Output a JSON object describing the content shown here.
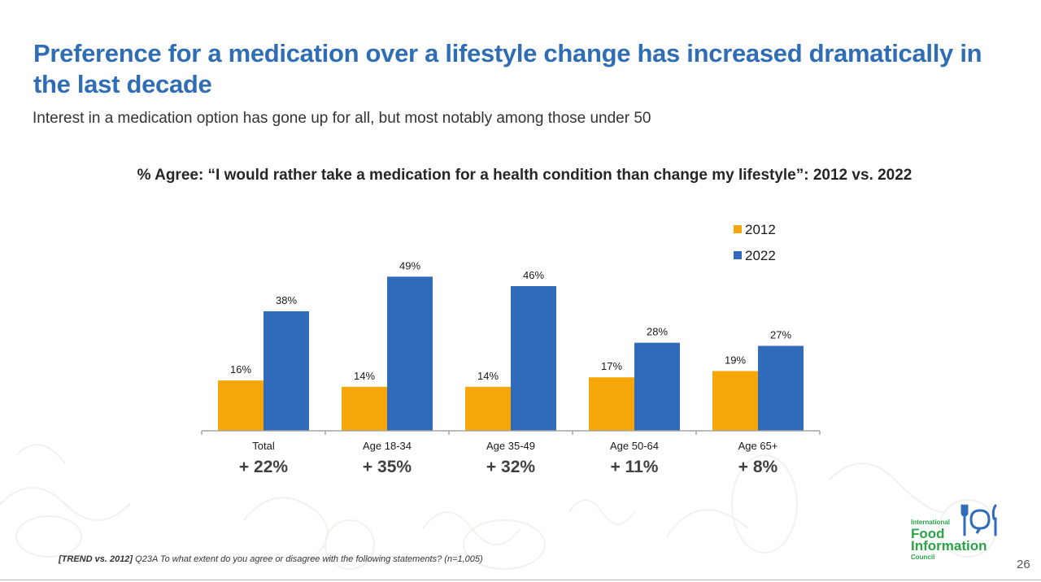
{
  "slide": {
    "title": "Preference for a medication over a lifestyle change has increased dramatically in the last decade",
    "subtitle": "Interest in a medication option has gone up for all, but most notably among those under 50",
    "footnote_prefix": "[TREND vs. 2012]",
    "footnote_text": " Q23A To what extent do you agree or disagree with the following statements? (n=1,005)",
    "page_number": "26",
    "logo": {
      "line1": "International",
      "line2": "Food",
      "line3": "Information",
      "line4": "Council"
    }
  },
  "chart_data": {
    "type": "bar",
    "title": "% Agree: “I would rather take a medication for a health condition than change my lifestyle”: 2012 vs. 2022",
    "categories": [
      "Total",
      "Age 18-34",
      "Age 35-49",
      "Age 50-64",
      "Age 65+"
    ],
    "series": [
      {
        "name": "2012",
        "color": "#f5a70a",
        "values": [
          16,
          14,
          14,
          17,
          19
        ],
        "labels": [
          "16%",
          "14%",
          "14%",
          "17%",
          "19%"
        ]
      },
      {
        "name": "2022",
        "color": "#2f6bb8",
        "values": [
          38,
          49,
          46,
          28,
          27
        ],
        "labels": [
          "38%",
          "49%",
          "46%",
          "28%",
          "27%"
        ]
      }
    ],
    "differences": [
      "+ 22%",
      "+ 35%",
      "+ 32%",
      "+ 11%",
      "+ 8%"
    ],
    "ylim": [
      0,
      60
    ],
    "grid": false,
    "y_axis_visible": false,
    "legend_position": "top-right",
    "xlabel": "",
    "ylabel": ""
  }
}
